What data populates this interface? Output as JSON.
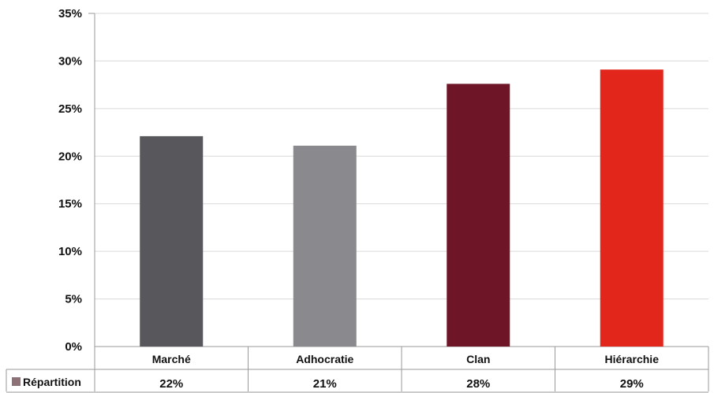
{
  "chart_data": {
    "type": "bar",
    "categories": [
      "Marché",
      "Adhocratie",
      "Clan",
      "Hiérarchie"
    ],
    "series": [
      {
        "name": "Répartition",
        "values": [
          22.1,
          21.1,
          27.6,
          29.1
        ],
        "value_labels": [
          "22%",
          "21%",
          "28%",
          "29%"
        ]
      }
    ],
    "bar_colors": [
      "#58575b",
      "#8a898e",
      "#6e1627",
      "#e2261b"
    ],
    "legend_color": "#8c7276",
    "ylim": [
      0,
      35
    ],
    "yticks": [
      0,
      5,
      10,
      15,
      20,
      25,
      30,
      35
    ],
    "ytick_labels": [
      "0%",
      "5%",
      "10%",
      "15%",
      "20%",
      "25%",
      "30%",
      "35%"
    ],
    "grid": true,
    "data_table": true,
    "title": "",
    "xlabel": "",
    "ylabel": ""
  }
}
